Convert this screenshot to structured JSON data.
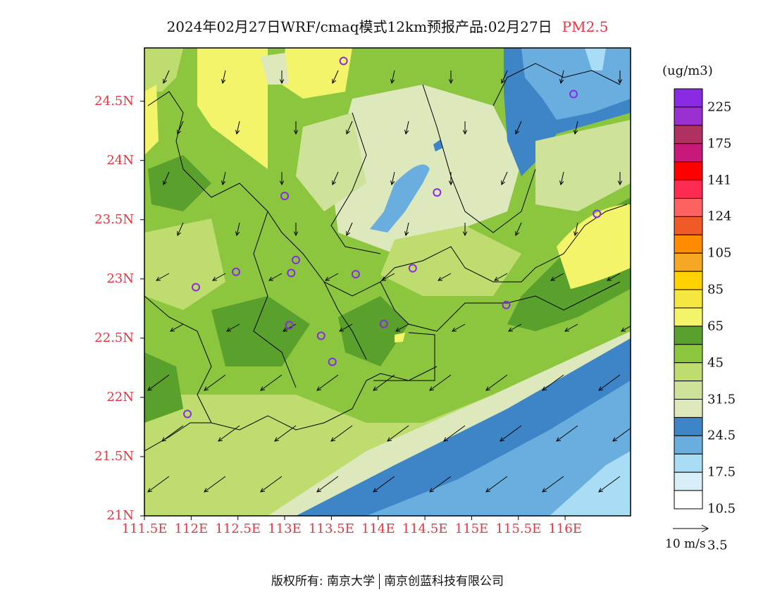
{
  "title": {
    "text": "2024年02月27日WRF/cmaq模式12km预报产品:02月27日",
    "pollutant": "PM2.5"
  },
  "lat_ticks": [
    "24.5N",
    "24N",
    "23.5N",
    "23N",
    "22.5N",
    "22N",
    "21.5N",
    "21N"
  ],
  "lon_ticks": [
    "111.5E",
    "112E",
    "112.5E",
    "113E",
    "113.5E",
    "114E",
    "114.5E",
    "115E",
    "115.5E",
    "116E"
  ],
  "colorbar": {
    "unit": "(ug/m3)",
    "labels": [
      "225",
      "175",
      "141",
      "124",
      "105",
      "85",
      "65",
      "45",
      "31.5",
      "24.5",
      "17.5",
      "10.5",
      "3.5"
    ],
    "colors": [
      "#8a2be2",
      "#9b30d0",
      "#b03060",
      "#c8187a",
      "#ff0000",
      "#ff2a50",
      "#ff6060",
      "#f05a28",
      "#ff8c00",
      "#f5a623",
      "#ffd200",
      "#f5e642",
      "#f4f46a",
      "#5aa02c",
      "#8cc63f",
      "#bedd6e",
      "#cfe29a",
      "#dde8bc",
      "#3d85c6",
      "#6aaee0",
      "#a9dcf5",
      "#d8eef9",
      "#ffffff"
    ]
  },
  "wind_legend": {
    "label": "10 m/s"
  },
  "copyright": {
    "left": "版权所有: 南京大学",
    "right": "南京创蓝科技有限公司"
  },
  "chart_data": {
    "type": "heatmap",
    "title": "2024年02月27日WRF/cmaq模式12km预报产品:02月27日 PM2.5",
    "unit": "(ug/m3)",
    "x_range": [
      111.5,
      116.7
    ],
    "y_range": [
      21.0,
      24.95
    ],
    "contour_levels": [
      3.5,
      10.5,
      17.5,
      24.5,
      31.5,
      45,
      65,
      85,
      105,
      124,
      141,
      175,
      225
    ],
    "stations": [
      {
        "lon": 113.63,
        "lat": 24.84
      },
      {
        "lon": 116.09,
        "lat": 24.56
      },
      {
        "lon": 114.63,
        "lat": 23.73
      },
      {
        "lon": 113.0,
        "lat": 23.7
      },
      {
        "lon": 116.34,
        "lat": 23.55
      },
      {
        "lon": 113.12,
        "lat": 23.16
      },
      {
        "lon": 112.48,
        "lat": 23.06
      },
      {
        "lon": 113.07,
        "lat": 23.05
      },
      {
        "lon": 113.76,
        "lat": 23.04
      },
      {
        "lon": 114.37,
        "lat": 23.09
      },
      {
        "lon": 112.05,
        "lat": 22.93
      },
      {
        "lon": 115.37,
        "lat": 22.78
      },
      {
        "lon": 113.05,
        "lat": 22.61
      },
      {
        "lon": 113.39,
        "lat": 22.52
      },
      {
        "lon": 114.06,
        "lat": 22.62
      },
      {
        "lon": 113.51,
        "lat": 22.3
      },
      {
        "lon": 111.96,
        "lat": 21.86
      }
    ],
    "wind_legend_speed_ms": 10
  }
}
